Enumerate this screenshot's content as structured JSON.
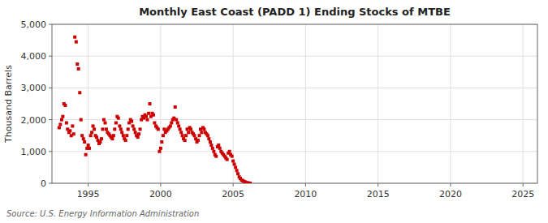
{
  "chart_data": {
    "type": "scatter",
    "title": "Monthly East Coast (PADD 1) Ending Stocks of MTBE",
    "ylabel": "Thousand Barrels",
    "annotations": [
      "Source: U.S. Energy Information Administration"
    ],
    "color": "#cc0000",
    "marker": "square",
    "grid": true,
    "xlim": [
      1992.5,
      2026
    ],
    "ylim": [
      0,
      5000
    ],
    "xticks": [
      1995,
      2000,
      2005,
      2010,
      2015,
      2020,
      2025
    ],
    "yticks": [
      0,
      {
        "value": 1000,
        "label": "1,000"
      },
      {
        "value": 2000,
        "label": "2,000"
      },
      {
        "value": 3000,
        "label": "3,000"
      },
      {
        "value": 4000,
        "label": "4,000"
      },
      {
        "value": 5000,
        "label": "5,000"
      }
    ],
    "x": [
      1993.0,
      1993.08,
      1993.17,
      1993.25,
      1993.33,
      1993.42,
      1993.5,
      1993.58,
      1993.67,
      1993.75,
      1993.83,
      1993.92,
      1994.0,
      1994.08,
      1994.17,
      1994.25,
      1994.33,
      1994.42,
      1994.5,
      1994.58,
      1994.67,
      1994.75,
      1994.83,
      1994.92,
      1995.0,
      1995.08,
      1995.17,
      1995.25,
      1995.33,
      1995.42,
      1995.5,
      1995.58,
      1995.67,
      1995.75,
      1995.83,
      1995.92,
      1996.0,
      1996.08,
      1996.17,
      1996.25,
      1996.33,
      1996.42,
      1996.5,
      1996.58,
      1996.67,
      1996.75,
      1996.83,
      1996.92,
      1997.0,
      1997.08,
      1997.17,
      1997.25,
      1997.33,
      1997.42,
      1997.5,
      1997.58,
      1997.67,
      1997.75,
      1997.83,
      1997.92,
      1998.0,
      1998.08,
      1998.17,
      1998.25,
      1998.33,
      1998.42,
      1998.5,
      1998.58,
      1998.67,
      1998.75,
      1998.83,
      1998.92,
      1999.0,
      1999.08,
      1999.17,
      1999.25,
      1999.33,
      1999.42,
      1999.5,
      1999.58,
      1999.67,
      1999.75,
      1999.83,
      1999.92,
      2000.0,
      2000.08,
      2000.17,
      2000.25,
      2000.33,
      2000.42,
      2000.5,
      2000.58,
      2000.67,
      2000.75,
      2000.83,
      2000.92,
      2001.0,
      2001.08,
      2001.17,
      2001.25,
      2001.33,
      2001.42,
      2001.5,
      2001.58,
      2001.67,
      2001.75,
      2001.83,
      2001.92,
      2002.0,
      2002.08,
      2002.17,
      2002.25,
      2002.33,
      2002.42,
      2002.5,
      2002.58,
      2002.67,
      2002.75,
      2002.83,
      2002.92,
      2003.0,
      2003.08,
      2003.17,
      2003.25,
      2003.33,
      2003.42,
      2003.5,
      2003.58,
      2003.67,
      2003.75,
      2003.83,
      2003.92,
      2004.0,
      2004.08,
      2004.17,
      2004.25,
      2004.33,
      2004.42,
      2004.5,
      2004.58,
      2004.67,
      2004.75,
      2004.83,
      2004.92,
      2005.0,
      2005.08,
      2005.17,
      2005.25,
      2005.33,
      2005.42,
      2005.5,
      2005.58,
      2005.67,
      2005.75,
      2005.83,
      2005.92,
      2006.0,
      2006.08,
      2006.17
    ],
    "values": [
      1750,
      1850,
      2000,
      2100,
      2500,
      2450,
      1900,
      1700,
      1600,
      1650,
      1500,
      1800,
      1550,
      4600,
      4450,
      3750,
      3600,
      2850,
      2000,
      1500,
      1400,
      1300,
      900,
      1100,
      1200,
      1100,
      1500,
      1600,
      1800,
      1700,
      1500,
      1450,
      1350,
      1250,
      1300,
      1400,
      1700,
      2000,
      1900,
      1700,
      1600,
      1550,
      1500,
      1450,
      1400,
      1500,
      1700,
      1900,
      2100,
      2050,
      1800,
      1700,
      1600,
      1500,
      1400,
      1350,
      1500,
      1700,
      1900,
      2000,
      1950,
      1800,
      1700,
      1600,
      1500,
      1450,
      1550,
      1700,
      2000,
      2100,
      2050,
      2150,
      2100,
      2000,
      2200,
      2500,
      2100,
      2200,
      2150,
      1900,
      1800,
      1750,
      1700,
      1000,
      1100,
      1300,
      1500,
      1700,
      1600,
      1650,
      1700,
      1750,
      1800,
      1900,
      2000,
      2050,
      2400,
      2000,
      1900,
      1800,
      1700,
      1600,
      1500,
      1400,
      1350,
      1500,
      1700,
      1600,
      1750,
      1700,
      1600,
      1550,
      1500,
      1400,
      1300,
      1350,
      1500,
      1700,
      1600,
      1750,
      1700,
      1600,
      1550,
      1500,
      1400,
      1300,
      1200,
      1100,
      1000,
      900,
      850,
      1150,
      1200,
      1100,
      1000,
      950,
      900,
      850,
      800,
      750,
      950,
      1000,
      900,
      850,
      700,
      600,
      500,
      400,
      300,
      200,
      150,
      100,
      80,
      60,
      40,
      20,
      10,
      5,
      3
    ]
  }
}
